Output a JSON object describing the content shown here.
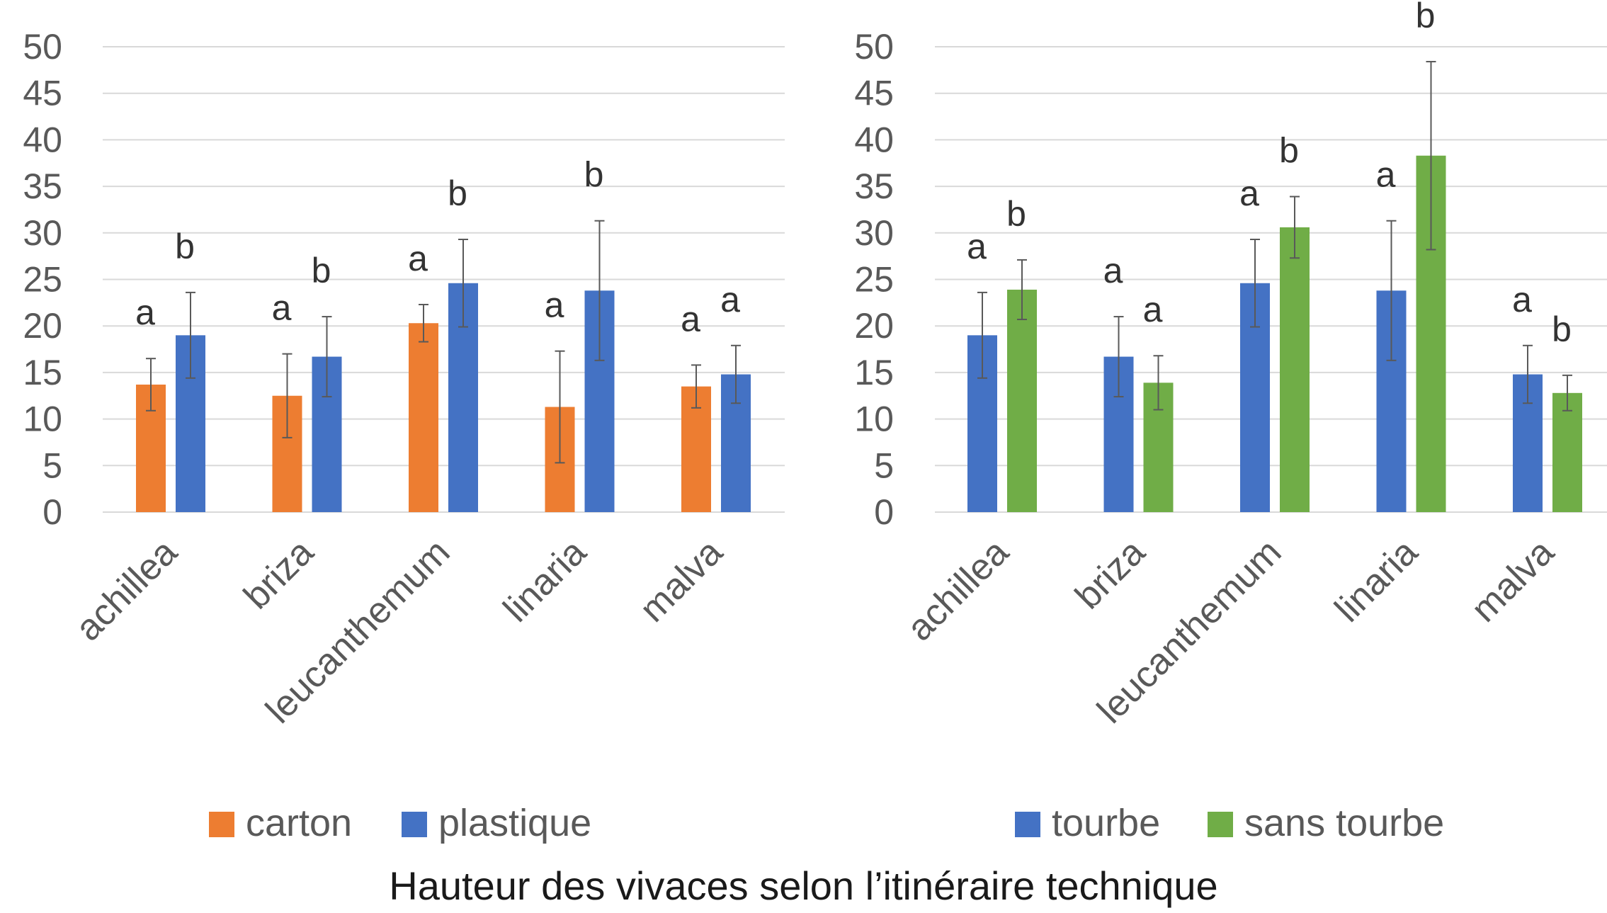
{
  "caption": "Hauteur des vivaces selon l’itinéraire technique",
  "chart_data": [
    {
      "type": "bar",
      "title": "",
      "xlabel": "",
      "ylabel": "",
      "ylim": [
        0,
        50
      ],
      "yticks": [
        0,
        5,
        10,
        15,
        20,
        25,
        30,
        35,
        40,
        45,
        50
      ],
      "grid": true,
      "legend_position": "bottom",
      "categories": [
        "achillea",
        "briza",
        "leucanthemum",
        "linaria",
        "malva"
      ],
      "series": [
        {
          "name": "carton",
          "color": "#ED7D31",
          "values": [
            13.7,
            12.5,
            20.3,
            11.3,
            13.5
          ],
          "error": [
            2.8,
            4.5,
            2.0,
            6.0,
            2.3
          ],
          "letters": [
            "a",
            "a",
            "a",
            "a",
            "a"
          ]
        },
        {
          "name": "plastique",
          "color": "#4472C4",
          "values": [
            19.0,
            16.7,
            24.6,
            23.8,
            14.8
          ],
          "error": [
            4.6,
            4.3,
            4.7,
            7.5,
            3.1
          ],
          "letters": [
            "b",
            "b",
            "b",
            "b",
            "a"
          ]
        }
      ]
    },
    {
      "type": "bar",
      "title": "",
      "xlabel": "",
      "ylabel": "",
      "ylim": [
        0,
        50
      ],
      "yticks": [
        0,
        5,
        10,
        15,
        20,
        25,
        30,
        35,
        40,
        45,
        50
      ],
      "grid": true,
      "legend_position": "bottom",
      "categories": [
        "achillea",
        "briza",
        "leucanthemum",
        "linaria",
        "malva"
      ],
      "series": [
        {
          "name": "tourbe",
          "color": "#4472C4",
          "values": [
            19.0,
            16.7,
            24.6,
            23.8,
            14.8
          ],
          "error": [
            4.6,
            4.3,
            4.7,
            7.5,
            3.1
          ],
          "letters": [
            "a",
            "a",
            "a",
            "a",
            "a"
          ]
        },
        {
          "name": "sans tourbe",
          "color": "#70AD47",
          "values": [
            23.9,
            13.9,
            30.6,
            38.3,
            12.8
          ],
          "error": [
            3.2,
            2.9,
            3.3,
            10.1,
            1.9
          ],
          "letters": [
            "b",
            "a",
            "b",
            "b",
            "b"
          ]
        }
      ]
    }
  ]
}
